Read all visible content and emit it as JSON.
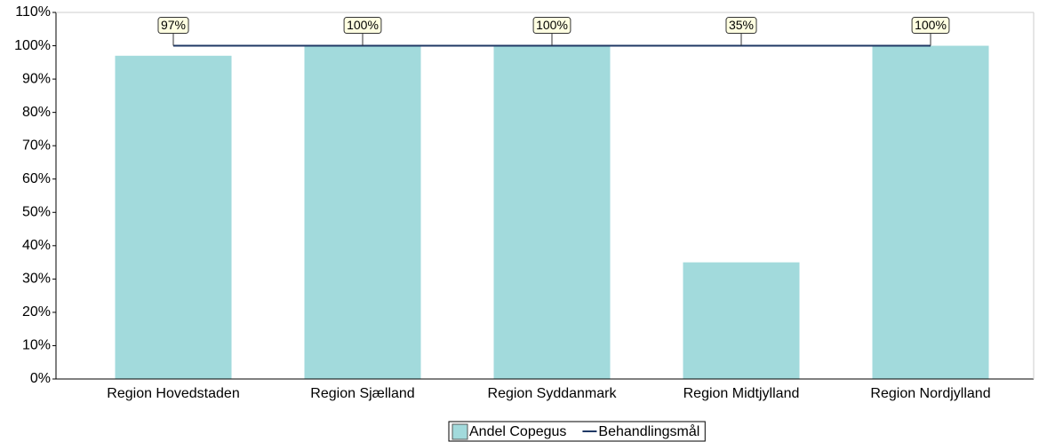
{
  "chart_data": {
    "type": "bar",
    "categories": [
      "Region Hovedstaden",
      "Region Sjælland",
      "Region Syddanmark",
      "Region Midtjylland",
      "Region Nordjylland"
    ],
    "series": [
      {
        "name": "Andel Copegus",
        "type": "bar",
        "color": "#a2dadc",
        "values": [
          97,
          100,
          100,
          35,
          100
        ],
        "value_labels": [
          "97%",
          "100%",
          "100%",
          "35%",
          "100%"
        ]
      },
      {
        "name": "Behandlingsmål",
        "type": "line",
        "color": "#1f3864",
        "values": [
          100,
          100,
          100,
          100,
          100
        ]
      }
    ],
    "ylim": [
      0,
      110
    ],
    "yticks": [
      {
        "value": 0,
        "label": "0%"
      },
      {
        "value": 10,
        "label": "10%"
      },
      {
        "value": 20,
        "label": "20%"
      },
      {
        "value": 30,
        "label": "30%"
      },
      {
        "value": 40,
        "label": "40%"
      },
      {
        "value": 50,
        "label": "50%"
      },
      {
        "value": 60,
        "label": "60%"
      },
      {
        "value": 70,
        "label": "70%"
      },
      {
        "value": 80,
        "label": "80%"
      },
      {
        "value": 90,
        "label": "90%"
      },
      {
        "value": 100,
        "label": "100%"
      },
      {
        "value": 110,
        "label": "110%"
      }
    ],
    "legend": "bottom"
  }
}
